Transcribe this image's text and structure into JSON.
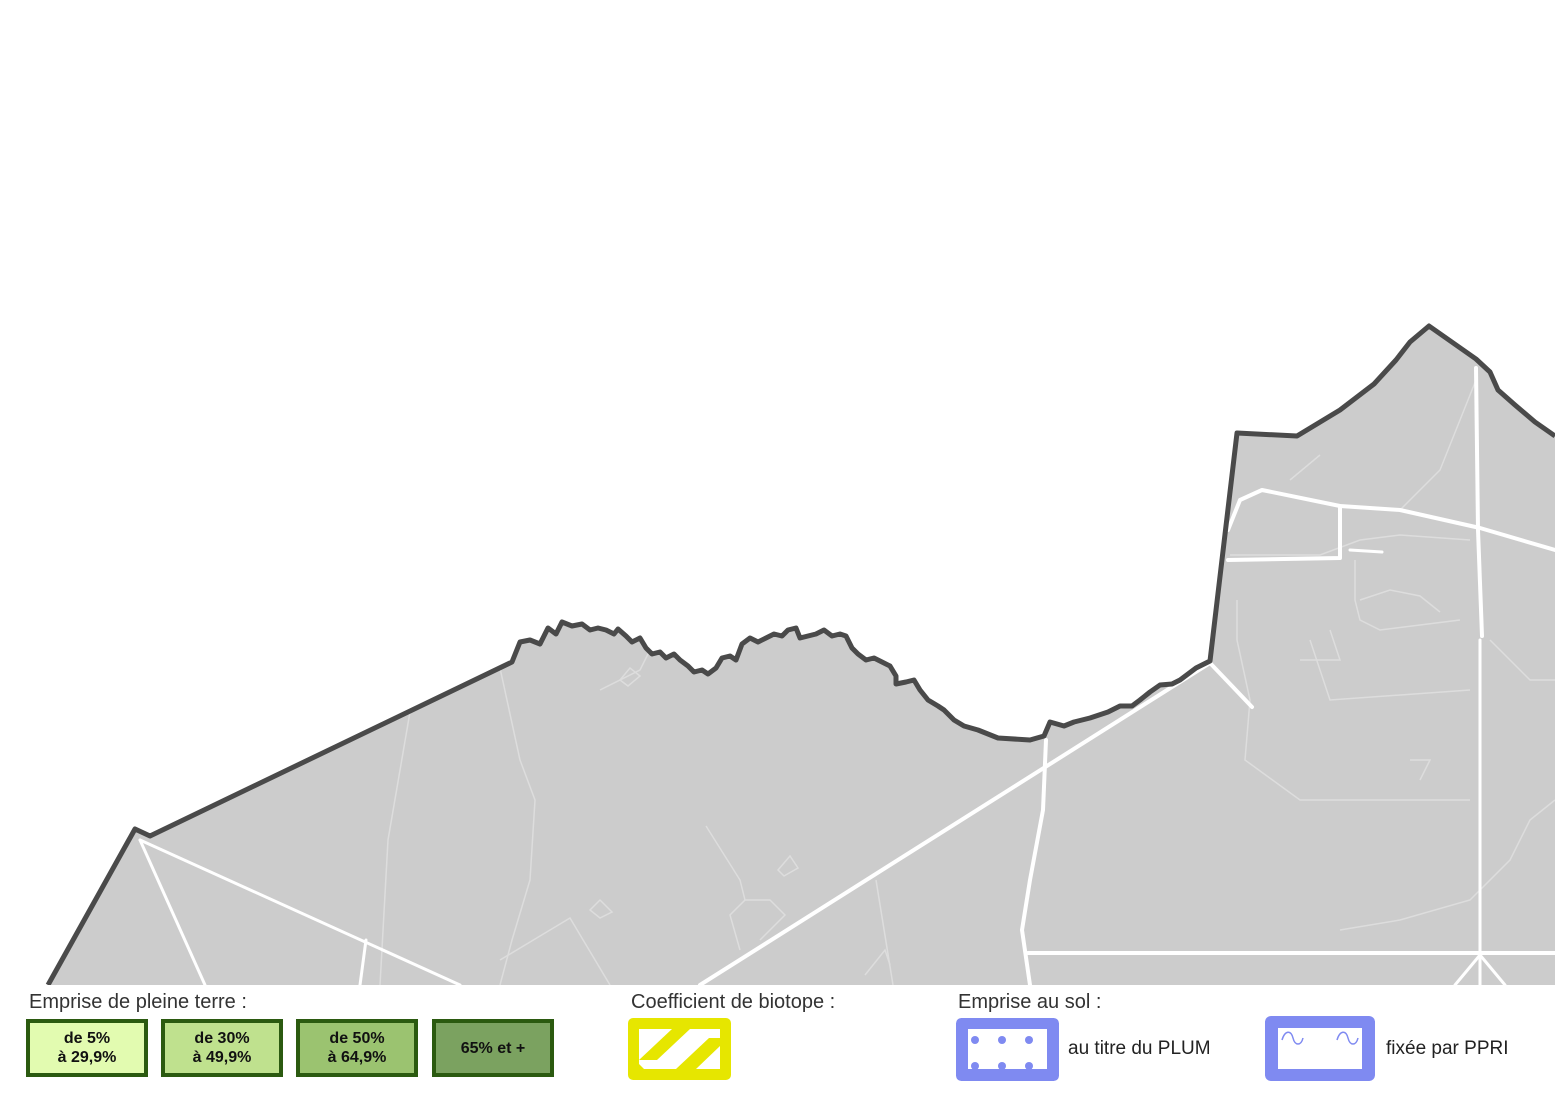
{
  "map": {
    "colors": {
      "land": "#cccccc",
      "boundary": "#4a4a4a",
      "roads": "#ffffff",
      "background": "#ffffff"
    }
  },
  "legend": {
    "pleine_terre": {
      "title": "Emprise de pleine terre :",
      "border_color": "#2b5a10",
      "items": [
        {
          "line1": "de 5%",
          "line2": "à 29,9%",
          "color": "#e2fbb0"
        },
        {
          "line1": "de 30%",
          "line2": "à 49,9%",
          "color": "#bfe18e"
        },
        {
          "line1": "de 50%",
          "line2": "à 64,9%",
          "color": "#9bc370"
        },
        {
          "line1": "65% et +",
          "line2": "",
          "color": "#7ba260"
        }
      ]
    },
    "biotope": {
      "title": "Coefficient de biotope :",
      "color": "#e6e600"
    },
    "emprise_sol": {
      "title": "Emprise au sol :",
      "color": "#7f8af1",
      "items": [
        {
          "label": "au titre du PLUM",
          "pattern": "dots"
        },
        {
          "label": "fixée par PPRI",
          "pattern": "waves"
        }
      ]
    }
  }
}
